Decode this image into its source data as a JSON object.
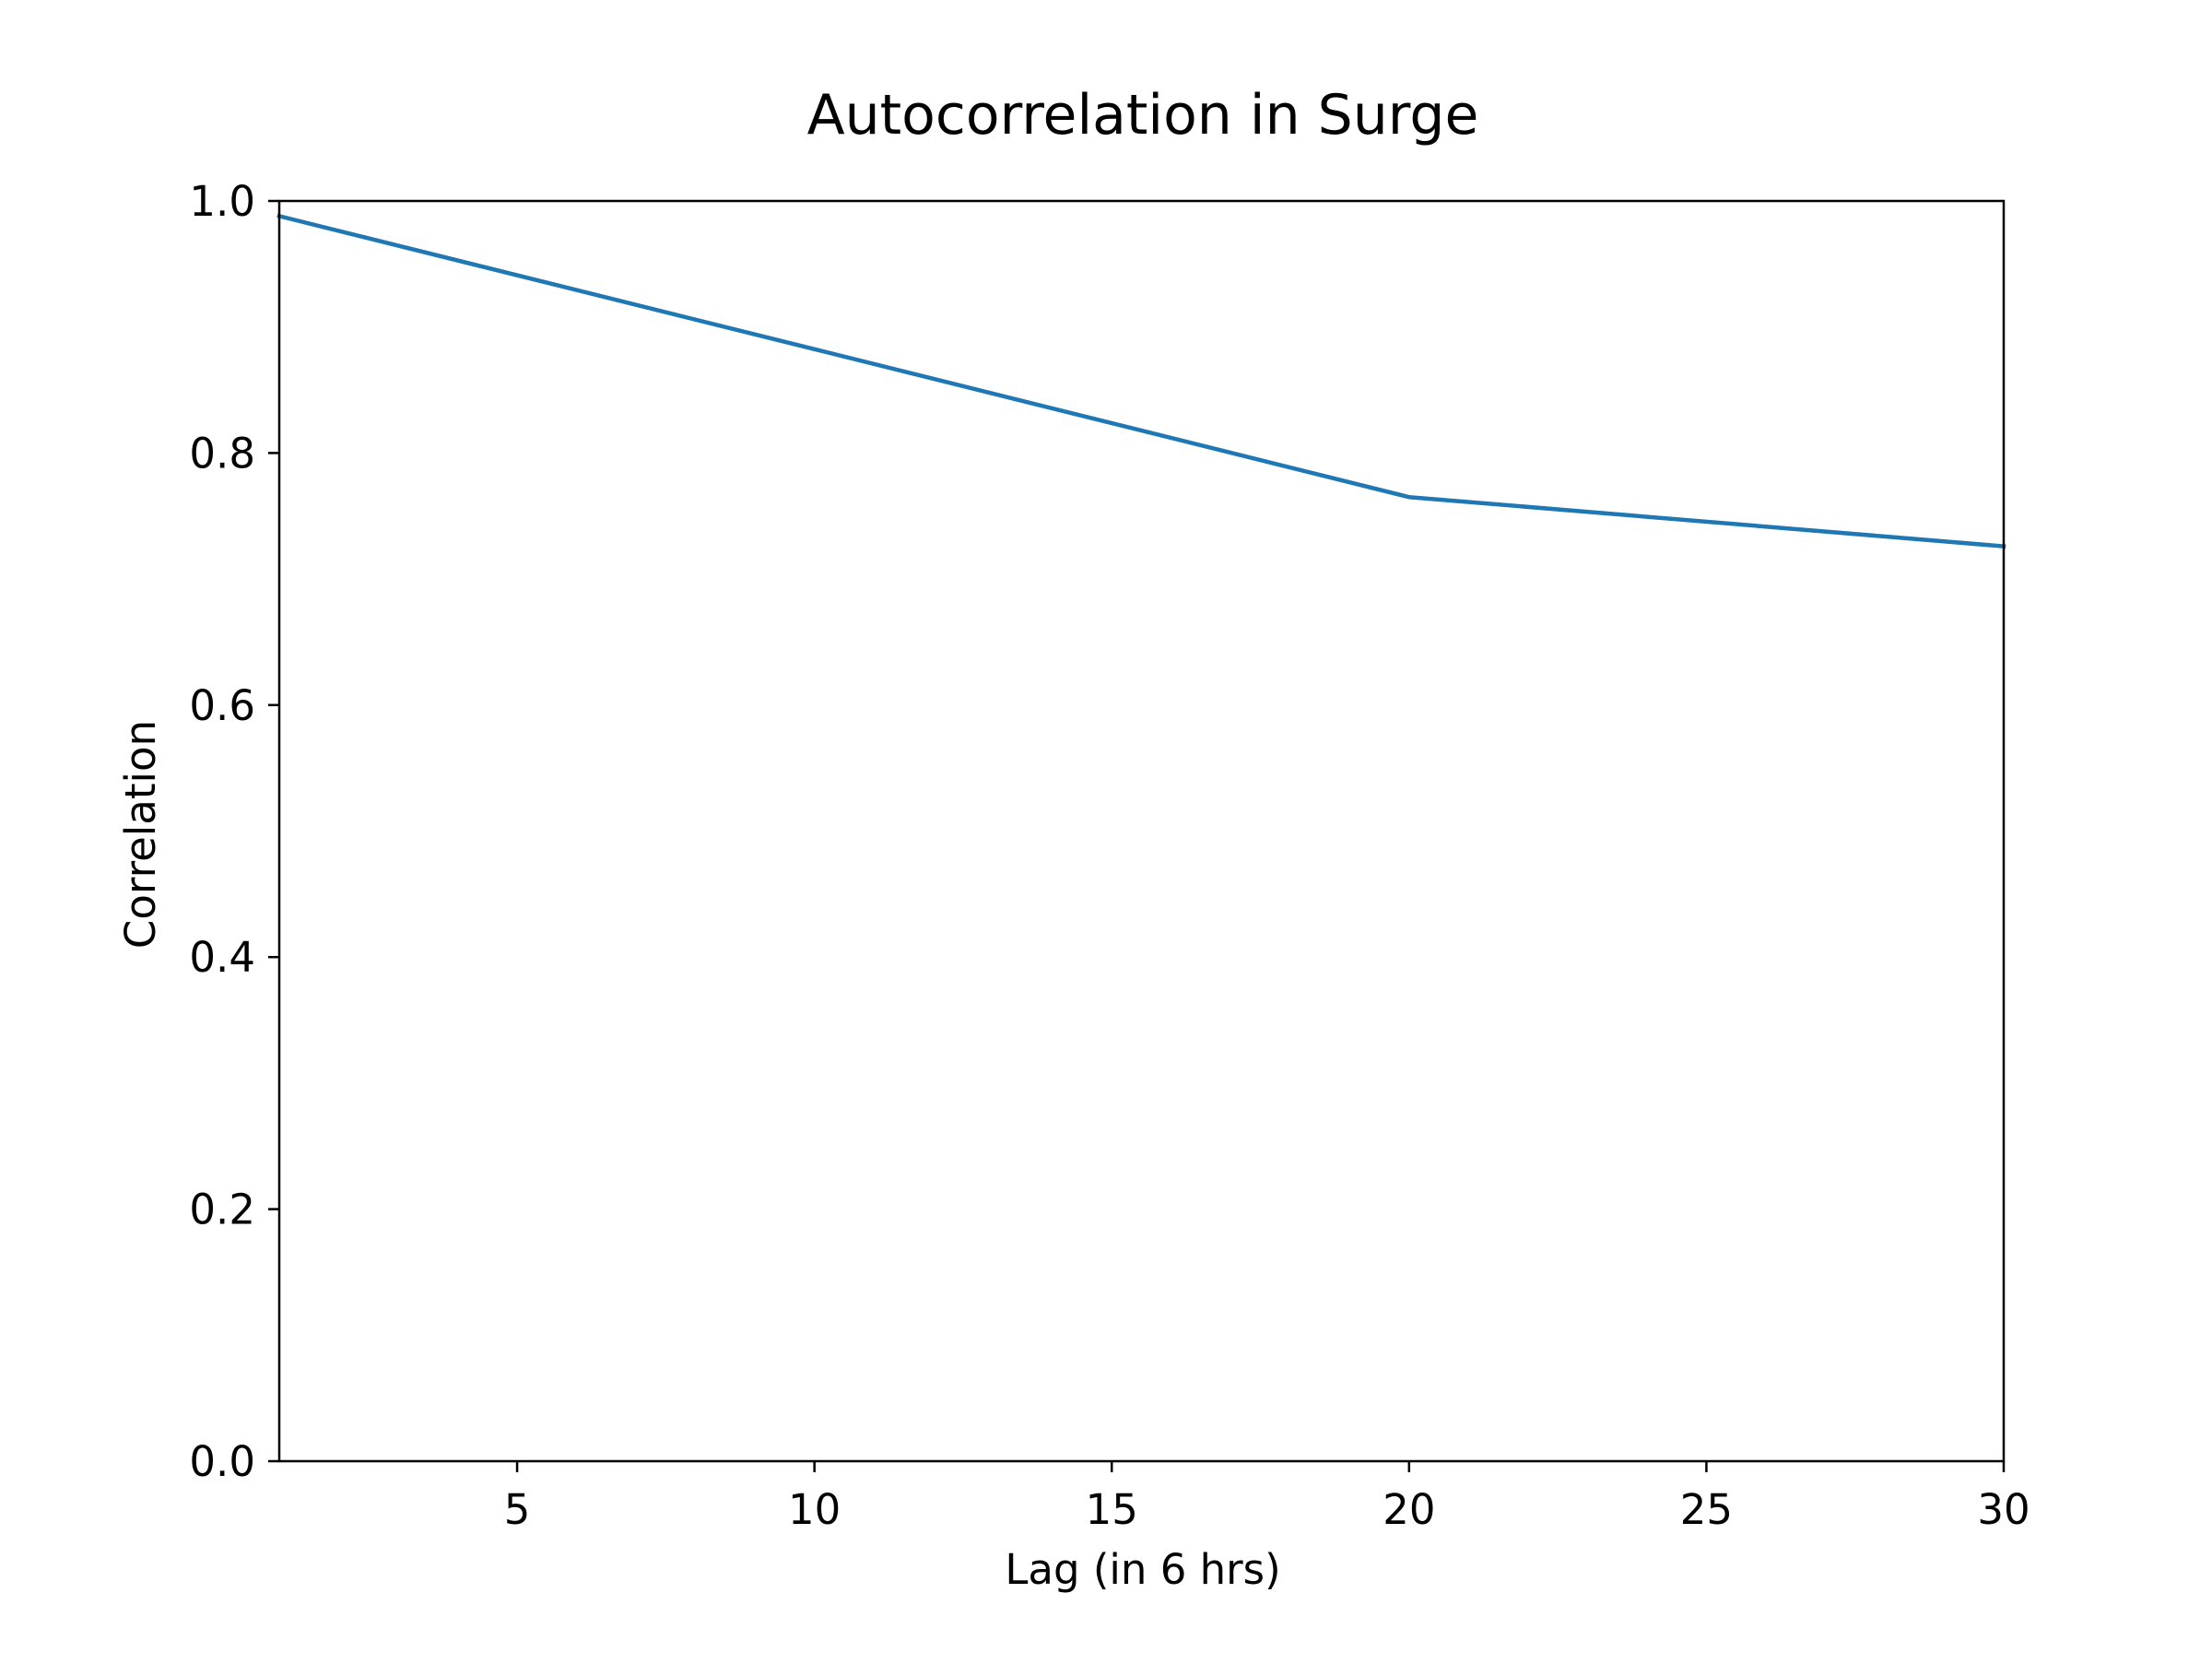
{
  "chart_data": {
    "type": "line",
    "title": "Autocorrelation in Surge",
    "xlabel": "Lag (in 6 hrs)",
    "ylabel": "Correlation",
    "xlim": [
      1,
      30
    ],
    "ylim": [
      0.0,
      1.0
    ],
    "x_ticks": [
      5,
      10,
      15,
      20,
      25,
      30
    ],
    "x_tick_labels": [
      "5",
      "10",
      "15",
      "20",
      "25",
      "30"
    ],
    "y_ticks": [
      0.0,
      0.2,
      0.4,
      0.6,
      0.8,
      1.0
    ],
    "y_tick_labels": [
      "0.0",
      "0.2",
      "0.4",
      "0.6",
      "0.8",
      "1.0"
    ],
    "grid": false,
    "legend": "none",
    "series": [
      {
        "color": "#1f77b4",
        "x": [
          1,
          20,
          30
        ],
        "values": [
          0.988,
          0.765,
          0.726
        ]
      }
    ]
  }
}
